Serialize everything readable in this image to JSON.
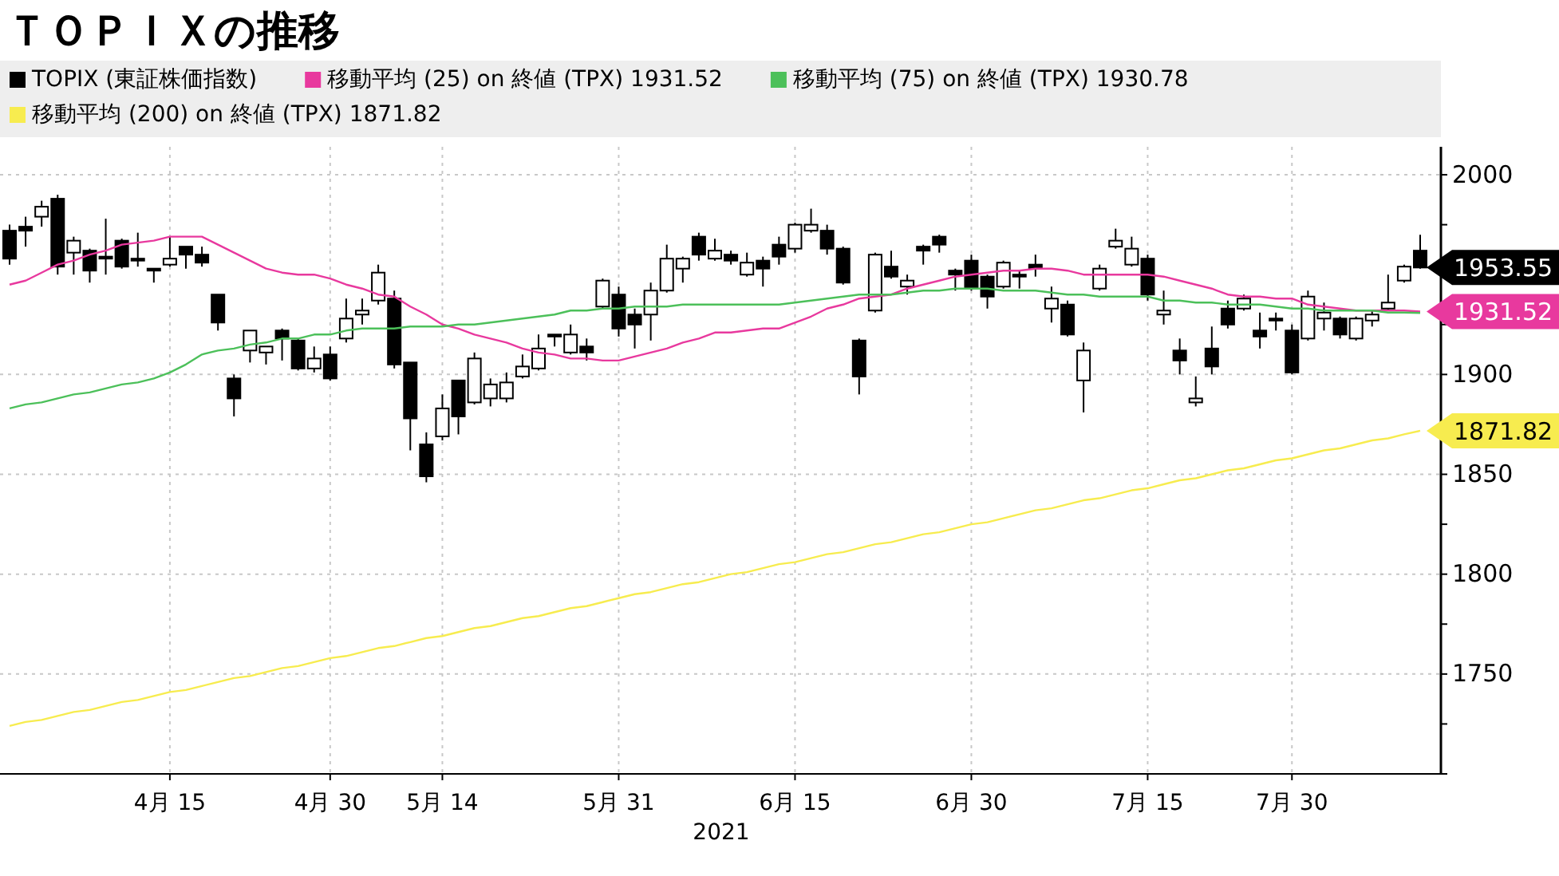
{
  "chart_data": {
    "type": "candlestick",
    "title": "ＴＯＰＩＸの推移",
    "xlabel": "2021",
    "categories": [
      null,
      null,
      null,
      null,
      null,
      null,
      null,
      null,
      null,
      null,
      "4月 15",
      null,
      null,
      null,
      null,
      null,
      null,
      null,
      null,
      null,
      "4月 30",
      null,
      null,
      null,
      null,
      null,
      null,
      "5月 14",
      null,
      null,
      null,
      null,
      null,
      null,
      null,
      null,
      null,
      null,
      "5月 31",
      null,
      null,
      null,
      null,
      null,
      null,
      null,
      null,
      null,
      null,
      "6月 15",
      null,
      null,
      null,
      null,
      null,
      null,
      null,
      null,
      null,
      null,
      "6月 30",
      null,
      null,
      null,
      null,
      null,
      null,
      null,
      null,
      null,
      null,
      "7月 15",
      null,
      null,
      null,
      null,
      null,
      null,
      null,
      null,
      "7月 30",
      null,
      null,
      null,
      null,
      null,
      null,
      null,
      null
    ],
    "series": [
      {
        "name": "TOPIX (東証株価指数)",
        "color": "#000000",
        "value_labels": [
          null,
          null,
          null,
          null,
          null,
          null,
          null,
          null,
          null,
          null,
          null,
          null,
          null,
          null,
          null,
          null,
          null,
          null,
          null,
          null,
          null,
          null,
          null,
          null,
          null,
          null,
          null,
          null,
          null,
          null,
          null,
          null,
          null,
          null,
          null,
          null,
          null,
          null,
          null,
          null,
          null,
          null,
          null,
          null,
          null,
          null,
          null,
          null,
          null,
          null,
          null,
          null,
          null,
          null,
          null,
          null,
          null,
          null,
          null,
          null,
          null,
          null,
          null,
          null,
          null,
          null,
          null,
          null,
          null,
          null,
          null,
          null,
          null,
          null,
          null,
          null,
          null,
          null,
          null,
          null,
          null,
          null,
          null,
          null,
          null,
          null,
          null,
          null,
          "1953.55"
        ],
        "ohlc": [
          [
            1972,
            1975,
            1955,
            1958
          ],
          [
            1974,
            1979,
            1964,
            1972
          ],
          [
            1979,
            1987,
            1974,
            1984
          ],
          [
            1988,
            1990,
            1950,
            1954
          ],
          [
            1961,
            1969,
            1950,
            1967
          ],
          [
            1962,
            1963,
            1946,
            1952
          ],
          [
            1959,
            1978,
            1950,
            1958
          ],
          [
            1967,
            1968,
            1953,
            1954
          ],
          [
            1958,
            1971,
            1954,
            1957
          ],
          [
            1953,
            1953,
            1946,
            1952
          ],
          [
            1955,
            1969,
            1954,
            1958
          ],
          [
            1964,
            1964,
            1953,
            1960
          ],
          [
            1960,
            1964,
            1954,
            1956
          ],
          [
            1940,
            1940,
            1922,
            1926
          ],
          [
            1898,
            1900,
            1879,
            1888
          ],
          [
            1912,
            1922,
            1906,
            1922
          ],
          [
            1911,
            1914,
            1905,
            1914
          ],
          [
            1922,
            1923,
            1907,
            1918
          ],
          [
            1917,
            1918,
            1902,
            1903
          ],
          [
            1903,
            1914,
            1901,
            1908
          ],
          [
            1910,
            1914,
            1897,
            1898
          ],
          [
            1918,
            1938,
            1916,
            1928
          ],
          [
            1930,
            1938,
            1925,
            1932
          ],
          [
            1937,
            1955,
            1935,
            1951
          ],
          [
            1938,
            1942,
            1903,
            1905
          ],
          [
            1906,
            1906,
            1862,
            1878
          ],
          [
            1865,
            1871,
            1846,
            1849
          ],
          [
            1869,
            1890,
            1867,
            1883
          ],
          [
            1897,
            1897,
            1870,
            1879
          ],
          [
            1886,
            1911,
            1885,
            1908
          ],
          [
            1888,
            1898,
            1884,
            1895
          ],
          [
            1888,
            1901,
            1886,
            1896
          ],
          [
            1899,
            1910,
            1898,
            1904
          ],
          [
            1903,
            1920,
            1902,
            1913
          ],
          [
            1920,
            1920,
            1914,
            1919
          ],
          [
            1911,
            1925,
            1910,
            1920
          ],
          [
            1914,
            1918,
            1907,
            1911
          ],
          [
            1934,
            1948,
            1933,
            1947
          ],
          [
            1940,
            1944,
            1919,
            1923
          ],
          [
            1930,
            1933,
            1913,
            1925
          ],
          [
            1930,
            1946,
            1917,
            1942
          ],
          [
            1942,
            1965,
            1941,
            1958
          ],
          [
            1953,
            1959,
            1946,
            1958
          ],
          [
            1969,
            1971,
            1957,
            1960
          ],
          [
            1958,
            1968,
            1957,
            1962
          ],
          [
            1960,
            1962,
            1955,
            1957
          ],
          [
            1950,
            1961,
            1949,
            1956
          ],
          [
            1957,
            1959,
            1944,
            1953
          ],
          [
            1965,
            1969,
            1955,
            1959
          ],
          [
            1963,
            1976,
            1961,
            1975
          ],
          [
            1972,
            1983,
            1971,
            1975
          ],
          [
            1972,
            1975,
            1960,
            1963
          ],
          [
            1963,
            1964,
            1945,
            1946
          ],
          [
            1917,
            1918,
            1890,
            1899
          ],
          [
            1932,
            1961,
            1931,
            1960
          ],
          [
            1954,
            1962,
            1948,
            1949
          ],
          [
            1944,
            1950,
            1940,
            1947
          ],
          [
            1964,
            1965,
            1955,
            1962
          ],
          [
            1969,
            1970,
            1961,
            1965
          ],
          [
            1952,
            1953,
            1942,
            1950
          ],
          [
            1957,
            1960,
            1942,
            1943
          ],
          [
            1949,
            1950,
            1933,
            1939
          ],
          [
            1944,
            1957,
            1943,
            1956
          ],
          [
            1950,
            1952,
            1943,
            1949
          ],
          [
            1955,
            1960,
            1949,
            1953
          ],
          [
            1933,
            1944,
            1926,
            1938
          ],
          [
            1935,
            1937,
            1919,
            1920
          ],
          [
            1897,
            1916,
            1881,
            1912
          ],
          [
            1943,
            1955,
            1942,
            1953
          ],
          [
            1964,
            1973,
            1963,
            1967
          ],
          [
            1955,
            1969,
            1954,
            1963
          ],
          [
            1958,
            1960,
            1937,
            1940
          ],
          [
            1930,
            1942,
            1925,
            1932
          ],
          [
            1912,
            1918,
            1900,
            1907
          ],
          [
            1886,
            1899,
            1884,
            1888
          ],
          [
            1913,
            1924,
            1900,
            1904
          ],
          [
            1933,
            1937,
            1923,
            1925
          ],
          [
            1933,
            1940,
            1932,
            1938
          ],
          [
            1922,
            1931,
            1913,
            1919
          ],
          [
            1928,
            1931,
            1922,
            1927
          ],
          [
            1922,
            1925,
            1900,
            1901
          ],
          [
            1918,
            1942,
            1917,
            1939
          ],
          [
            1928,
            1936,
            1922,
            1931
          ],
          [
            1928,
            1929,
            1918,
            1920
          ],
          [
            1918,
            1929,
            1917,
            1928
          ],
          [
            1927,
            1932,
            1924,
            1930
          ],
          [
            1933,
            1950,
            1932,
            1936
          ],
          [
            1947,
            1955,
            1946,
            1954
          ],
          [
            1962,
            1970,
            1953,
            1953.55
          ]
        ]
      },
      {
        "name": "移動平均 (25)  on 終値 (TPX) 1931.52",
        "type": "line",
        "color": "#e8399e",
        "value_labels": [
          null,
          null,
          null,
          null,
          null,
          null,
          null,
          null,
          null,
          null,
          null,
          null,
          null,
          null,
          null,
          null,
          null,
          null,
          null,
          null,
          null,
          null,
          null,
          null,
          null,
          null,
          null,
          null,
          null,
          null,
          null,
          null,
          null,
          null,
          null,
          null,
          null,
          null,
          null,
          null,
          null,
          null,
          null,
          null,
          null,
          null,
          null,
          null,
          null,
          null,
          null,
          null,
          null,
          null,
          null,
          null,
          null,
          null,
          null,
          null,
          null,
          null,
          null,
          null,
          null,
          null,
          null,
          null,
          null,
          null,
          null,
          null,
          null,
          null,
          null,
          null,
          null,
          null,
          null,
          null,
          null,
          null,
          null,
          null,
          null,
          null,
          null,
          null,
          "1931.52"
        ],
        "values": [
          1945,
          1947,
          1951,
          1955,
          1957,
          1960,
          1962,
          1965,
          1966,
          1967,
          1969,
          1969,
          1969,
          1965,
          1961,
          1957,
          1953,
          1951,
          1950,
          1950,
          1948,
          1945,
          1943,
          1940,
          1939,
          1934,
          1930,
          1925,
          1923,
          1920,
          1918,
          1916,
          1913,
          1911,
          1910,
          1908,
          1908,
          1907,
          1907,
          1909,
          1911,
          1913,
          1916,
          1918,
          1921,
          1921,
          1922,
          1923,
          1923,
          1926,
          1929,
          1933,
          1935,
          1938,
          1939,
          1940,
          1943,
          1945,
          1947,
          1949,
          1950,
          1951,
          1952,
          1952,
          1953,
          1953,
          1952,
          1950,
          1950,
          1950,
          1950,
          1950,
          1949,
          1947,
          1945,
          1943,
          1940,
          1939,
          1939,
          1938,
          1938,
          1935,
          1934,
          1933,
          1932,
          1932,
          1932,
          1932,
          1931.52
        ]
      },
      {
        "name": "移動平均 (75)  on 終値 (TPX) 1930.78",
        "type": "line",
        "color": "#4cc05a",
        "values": [
          1883,
          1885,
          1886,
          1888,
          1890,
          1891,
          1893,
          1895,
          1896,
          1898,
          1901,
          1905,
          1910,
          1912,
          1913,
          1915,
          1916,
          1918,
          1918,
          1920,
          1920,
          1922,
          1923,
          1923,
          1923,
          1924,
          1924,
          1924,
          1925,
          1925,
          1926,
          1927,
          1928,
          1929,
          1930,
          1932,
          1932,
          1933,
          1933,
          1934,
          1934,
          1934,
          1935,
          1935,
          1935,
          1935,
          1935,
          1935,
          1935,
          1936,
          1937,
          1938,
          1939,
          1940,
          1940,
          1940,
          1941,
          1942,
          1942,
          1943,
          1943,
          1943,
          1942,
          1942,
          1942,
          1941,
          1940,
          1940,
          1939,
          1939,
          1939,
          1939,
          1937,
          1937,
          1936,
          1936,
          1935,
          1935,
          1935,
          1934,
          1933,
          1933,
          1932,
          1932,
          1932,
          1932,
          1931,
          1931,
          1930.78
        ]
      },
      {
        "name": "移動平均 (200)  on 終値 (TPX) 1871.82",
        "type": "line",
        "color": "#f7ec4f",
        "value_labels": [
          null,
          null,
          null,
          null,
          null,
          null,
          null,
          null,
          null,
          null,
          null,
          null,
          null,
          null,
          null,
          null,
          null,
          null,
          null,
          null,
          null,
          null,
          null,
          null,
          null,
          null,
          null,
          null,
          null,
          null,
          null,
          null,
          null,
          null,
          null,
          null,
          null,
          null,
          null,
          null,
          null,
          null,
          null,
          null,
          null,
          null,
          null,
          null,
          null,
          null,
          null,
          null,
          null,
          null,
          null,
          null,
          null,
          null,
          null,
          null,
          null,
          null,
          null,
          null,
          null,
          null,
          null,
          null,
          null,
          null,
          null,
          null,
          null,
          null,
          null,
          null,
          null,
          null,
          null,
          null,
          null,
          null,
          null,
          null,
          null,
          null,
          null,
          null,
          "1871.82"
        ],
        "values": [
          1724,
          1726,
          1727,
          1729,
          1731,
          1732,
          1734,
          1736,
          1737,
          1739,
          1741,
          1742,
          1744,
          1746,
          1748,
          1749,
          1751,
          1753,
          1754,
          1756,
          1758,
          1759,
          1761,
          1763,
          1764,
          1766,
          1768,
          1769,
          1771,
          1773,
          1774,
          1776,
          1778,
          1779,
          1781,
          1783,
          1784,
          1786,
          1788,
          1790,
          1791,
          1793,
          1795,
          1796,
          1798,
          1800,
          1801,
          1803,
          1805,
          1806,
          1808,
          1810,
          1811,
          1813,
          1815,
          1816,
          1818,
          1820,
          1821,
          1823,
          1825,
          1826,
          1828,
          1830,
          1832,
          1833,
          1835,
          1837,
          1838,
          1840,
          1842,
          1843,
          1845,
          1847,
          1848,
          1850,
          1852,
          1853,
          1855,
          1857,
          1858,
          1860,
          1862,
          1863,
          1865,
          1867,
          1868,
          1870,
          1871.82
        ]
      }
    ],
    "ylim": [
      1700,
      2014
    ],
    "yticks": [
      {
        "value": 1700,
        "label": null
      },
      {
        "value": 1725,
        "label": null
      },
      1750,
      {
        "value": 1775,
        "label": null
      },
      1800,
      {
        "value": 1825,
        "label": null
      },
      1850,
      {
        "value": 1875,
        "label": null
      },
      1900,
      {
        "value": 1925,
        "label": null
      },
      {
        "value": 1950,
        "label": null
      },
      {
        "value": 1975,
        "label": null
      },
      2000
    ],
    "grid": true,
    "legend": "top"
  }
}
